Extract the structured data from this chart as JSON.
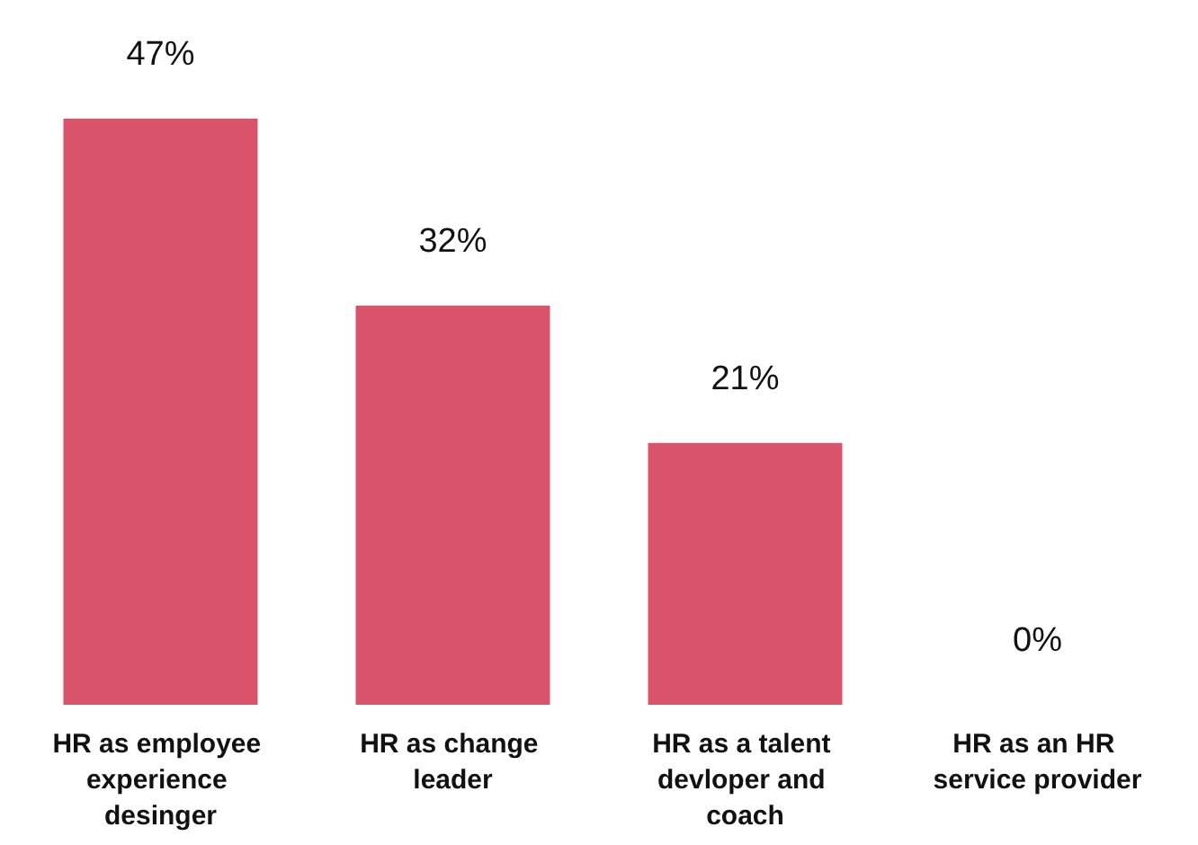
{
  "chart_data": {
    "type": "bar",
    "categories": [
      "HR as employee experience desinger",
      "HR as change leader",
      "HR as a talent devloper and coach",
      "HR as an HR service provider"
    ],
    "values": [
      47,
      32,
      21,
      0
    ],
    "value_labels": [
      "47%",
      "32%",
      "21%",
      "0%"
    ],
    "color": "#d9546a"
  }
}
